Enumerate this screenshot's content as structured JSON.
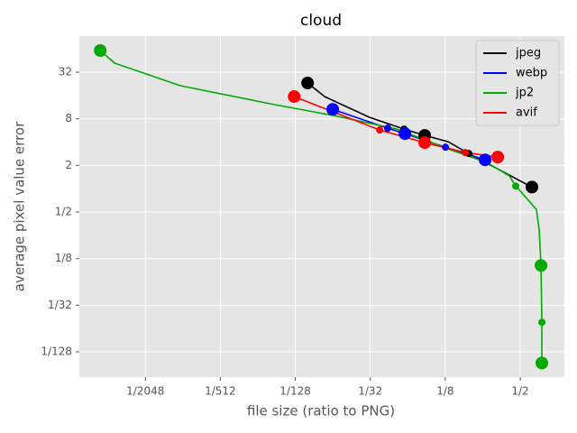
{
  "chart_data": {
    "type": "line",
    "title": "cloud",
    "x_label": "file size (ratio to PNG)",
    "y_label": "average pixel value error",
    "xscale": "log2",
    "yscale": "log2",
    "grid": true,
    "legend": "upper right",
    "xlim": [
      0.000144,
      1.131
    ],
    "ylim": [
      0.00369,
      93.7
    ],
    "xticks": [
      {
        "value": 0.00048828125,
        "label": "1/2048"
      },
      {
        "value": 0.001953125,
        "label": "1/512"
      },
      {
        "value": 0.0078125,
        "label": "1/128"
      },
      {
        "value": 0.03125,
        "label": "1/32"
      },
      {
        "value": 0.125,
        "label": "1/8"
      },
      {
        "value": 0.5,
        "label": "1/2"
      }
    ],
    "yticks": [
      32,
      8,
      2,
      {
        "value": 0.5,
        "label": "1/2"
      },
      {
        "value": 0.125,
        "label": "1/8"
      },
      {
        "value": 0.03125,
        "label": "1/32"
      },
      {
        "value": 0.0078125,
        "label": "1/128"
      }
    ],
    "series": [
      {
        "name": "jpeg",
        "color": "#000000",
        "x": [
          0.0098,
          0.01343,
          0.0309,
          0.0584,
          0.0855,
          0.132,
          0.193,
          0.621
        ],
        "values": [
          23.2,
          15.5,
          8.35,
          5.89,
          4.88,
          4.05,
          2.85,
          1.05
        ],
        "marker_size": [
          7,
          null,
          null,
          4,
          7,
          null,
          4,
          7
        ]
      },
      {
        "name": "webp",
        "color": "#0000ff",
        "x": [
          0.0156,
          0.0431,
          0.0593,
          0.1255,
          0.261
        ],
        "values": [
          10.6,
          6.05,
          5.15,
          3.44,
          2.36
        ],
        "marker_size": [
          7,
          4,
          7,
          4,
          7
        ]
      },
      {
        "name": "jp2",
        "color": "#00aa00",
        "x": [
          0.000212,
          0.000277,
          0.000933,
          0.00494,
          0.0159,
          0.0511,
          0.139,
          0.27,
          0.41,
          0.46,
          0.526,
          0.675,
          0.71,
          0.734,
          0.746,
          0.746
        ],
        "values": [
          61.0,
          41.9,
          21.4,
          12.5,
          8.82,
          5.89,
          3.17,
          2.18,
          1.46,
          1.08,
          0.851,
          0.539,
          0.29,
          0.102,
          0.0188,
          0.0056
        ],
        "marker_size": [
          7,
          null,
          null,
          null,
          null,
          null,
          null,
          null,
          null,
          4,
          null,
          null,
          null,
          7,
          4,
          7
        ]
      },
      {
        "name": "avif",
        "color": "#ff0000",
        "x": [
          0.00765,
          0.0372,
          0.0855,
          0.181,
          0.33
        ],
        "values": [
          15.5,
          5.73,
          3.94,
          2.93,
          2.56
        ],
        "marker_size": [
          7,
          4,
          7,
          4,
          7
        ]
      }
    ]
  }
}
